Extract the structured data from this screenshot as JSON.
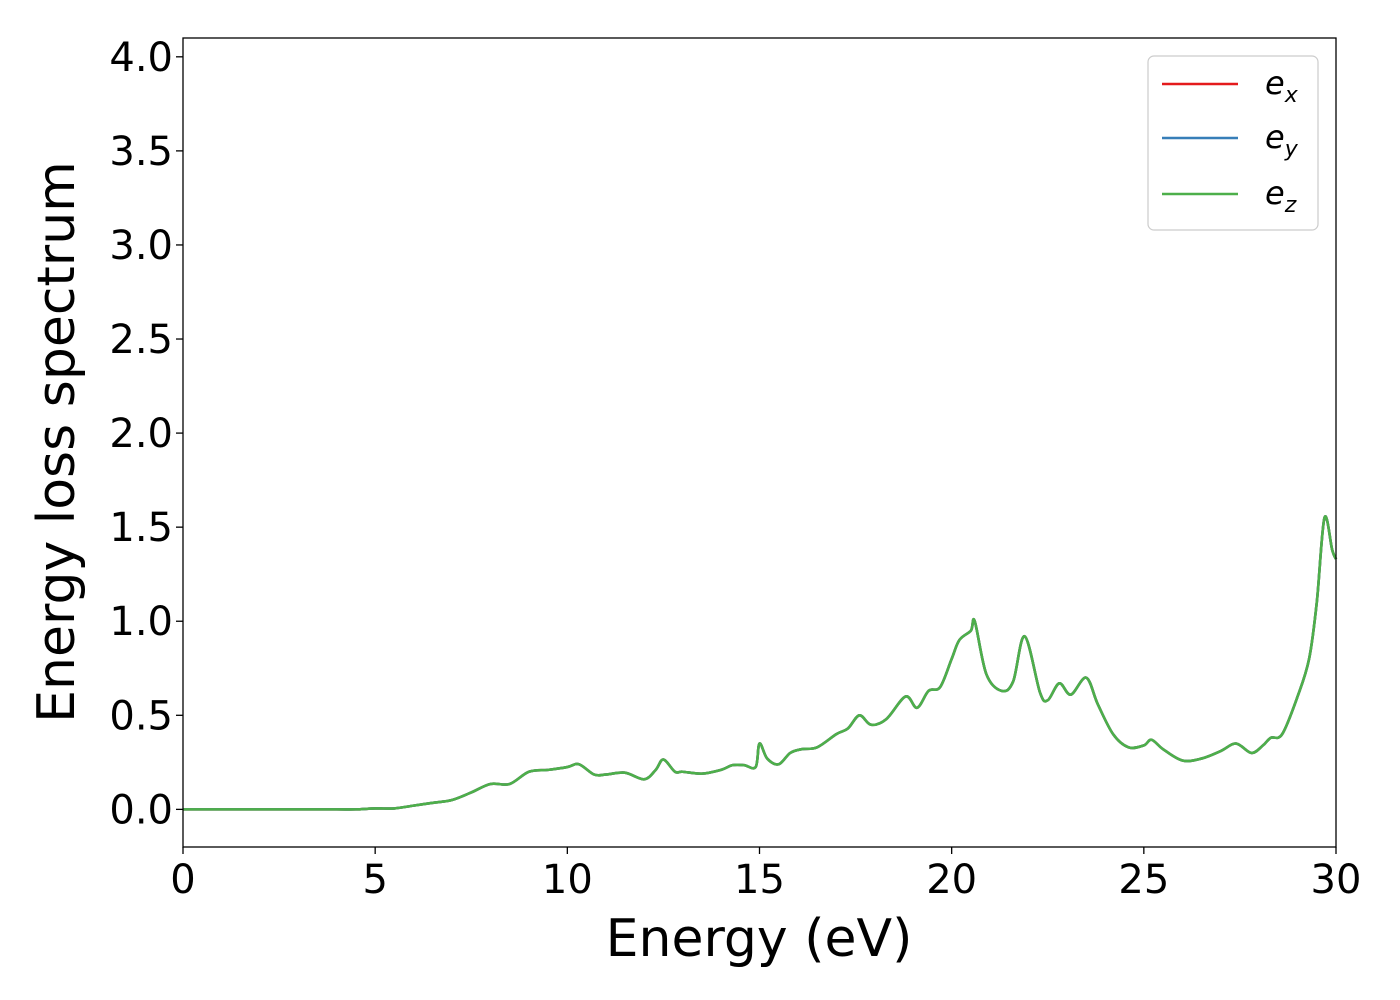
{
  "chart_data": {
    "type": "line",
    "title": "",
    "xlabel": "Energy (eV)",
    "ylabel": "Energy loss spectrum",
    "xlim": [
      0,
      30
    ],
    "ylim": [
      -0.2,
      4.1
    ],
    "x_ticks": [
      0,
      5,
      10,
      15,
      20,
      25,
      30
    ],
    "x_tick_labels": [
      "0",
      "5",
      "10",
      "15",
      "20",
      "25",
      "30"
    ],
    "y_ticks": [
      0.0,
      0.5,
      1.0,
      1.5,
      2.0,
      2.5,
      3.0,
      3.5,
      4.0
    ],
    "y_tick_labels": [
      "0.0",
      "0.5",
      "1.0",
      "1.5",
      "2.0",
      "2.5",
      "3.0",
      "3.5",
      "4.0"
    ],
    "grid": false,
    "legend_position": "top-right",
    "legend": [
      {
        "base": "e",
        "sub": "x",
        "color": "#e41a1c"
      },
      {
        "base": "e",
        "sub": "y",
        "color": "#377eb8"
      },
      {
        "base": "e",
        "sub": "z",
        "color": "#4daf4a"
      }
    ],
    "x": [
      0,
      1,
      2,
      3,
      4,
      4.5,
      5,
      5.5,
      6,
      6.5,
      7,
      7.5,
      8,
      8.5,
      9,
      9.5,
      10,
      10.3,
      10.7,
      11,
      11.5,
      12,
      12.3,
      12.5,
      12.8,
      13,
      13.5,
      14,
      14.3,
      14.6,
      14.9,
      15.0,
      15.2,
      15.5,
      15.8,
      16.1,
      16.5,
      17,
      17.3,
      17.6,
      17.9,
      18.3,
      18.8,
      19.1,
      19.4,
      19.7,
      20,
      20.2,
      20.5,
      20.6,
      20.9,
      21.3,
      21.6,
      21.9,
      22.3,
      22.5,
      22.8,
      23.1,
      23.5,
      23.8,
      24.2,
      24.6,
      25,
      25.2,
      25.5,
      26,
      26.5,
      27,
      27.4,
      27.8,
      28.1,
      28.3,
      28.6,
      29,
      29.3,
      29.5,
      29.7,
      29.9,
      30
    ],
    "series": [
      {
        "name": "e_x",
        "color": "#e41a1c",
        "values": [
          0,
          0,
          0,
          0,
          0,
          0,
          0.005,
          0.005,
          0.02,
          0.035,
          0.05,
          0.09,
          0.135,
          0.135,
          0.2,
          0.21,
          0.225,
          0.24,
          0.185,
          0.185,
          0.195,
          0.16,
          0.21,
          0.265,
          0.2,
          0.2,
          0.19,
          0.21,
          0.235,
          0.235,
          0.225,
          0.35,
          0.27,
          0.24,
          0.3,
          0.32,
          0.33,
          0.4,
          0.43,
          0.5,
          0.45,
          0.48,
          0.6,
          0.54,
          0.63,
          0.65,
          0.8,
          0.9,
          0.95,
          1.0,
          0.72,
          0.63,
          0.68,
          0.92,
          0.62,
          0.58,
          0.67,
          0.61,
          0.7,
          0.56,
          0.4,
          0.33,
          0.34,
          0.37,
          0.32,
          0.26,
          0.27,
          0.31,
          0.35,
          0.3,
          0.34,
          0.38,
          0.4,
          0.6,
          0.8,
          1.1,
          1.55,
          1.38,
          1.33
        ]
      },
      {
        "name": "e_y",
        "color": "#377eb8",
        "values": [
          0,
          0,
          0,
          0,
          0,
          0,
          0.005,
          0.005,
          0.02,
          0.035,
          0.05,
          0.09,
          0.135,
          0.135,
          0.2,
          0.21,
          0.225,
          0.24,
          0.185,
          0.185,
          0.195,
          0.16,
          0.21,
          0.265,
          0.2,
          0.2,
          0.19,
          0.21,
          0.235,
          0.235,
          0.225,
          0.35,
          0.27,
          0.24,
          0.3,
          0.32,
          0.33,
          0.4,
          0.43,
          0.5,
          0.45,
          0.48,
          0.6,
          0.54,
          0.63,
          0.65,
          0.8,
          0.9,
          0.95,
          1.0,
          0.72,
          0.63,
          0.68,
          0.92,
          0.62,
          0.58,
          0.67,
          0.61,
          0.7,
          0.56,
          0.4,
          0.33,
          0.34,
          0.37,
          0.32,
          0.26,
          0.27,
          0.31,
          0.35,
          0.3,
          0.34,
          0.38,
          0.4,
          0.6,
          0.8,
          1.1,
          1.55,
          1.38,
          1.33
        ]
      },
      {
        "name": "e_z",
        "color": "#4daf4a",
        "values": [
          0,
          0,
          0,
          0,
          0,
          0,
          0.005,
          0.005,
          0.02,
          0.035,
          0.05,
          0.09,
          0.135,
          0.135,
          0.2,
          0.21,
          0.225,
          0.24,
          0.185,
          0.185,
          0.195,
          0.16,
          0.21,
          0.265,
          0.2,
          0.2,
          0.19,
          0.21,
          0.235,
          0.235,
          0.225,
          0.35,
          0.27,
          0.24,
          0.3,
          0.32,
          0.33,
          0.4,
          0.43,
          0.5,
          0.45,
          0.48,
          0.6,
          0.54,
          0.63,
          0.65,
          0.8,
          0.9,
          0.95,
          1.0,
          0.72,
          0.63,
          0.68,
          0.92,
          0.62,
          0.58,
          0.67,
          0.61,
          0.7,
          0.56,
          0.4,
          0.33,
          0.34,
          0.37,
          0.32,
          0.26,
          0.27,
          0.31,
          0.35,
          0.3,
          0.34,
          0.38,
          0.4,
          0.6,
          0.8,
          1.1,
          1.55,
          1.38,
          1.33
        ]
      }
    ]
  }
}
